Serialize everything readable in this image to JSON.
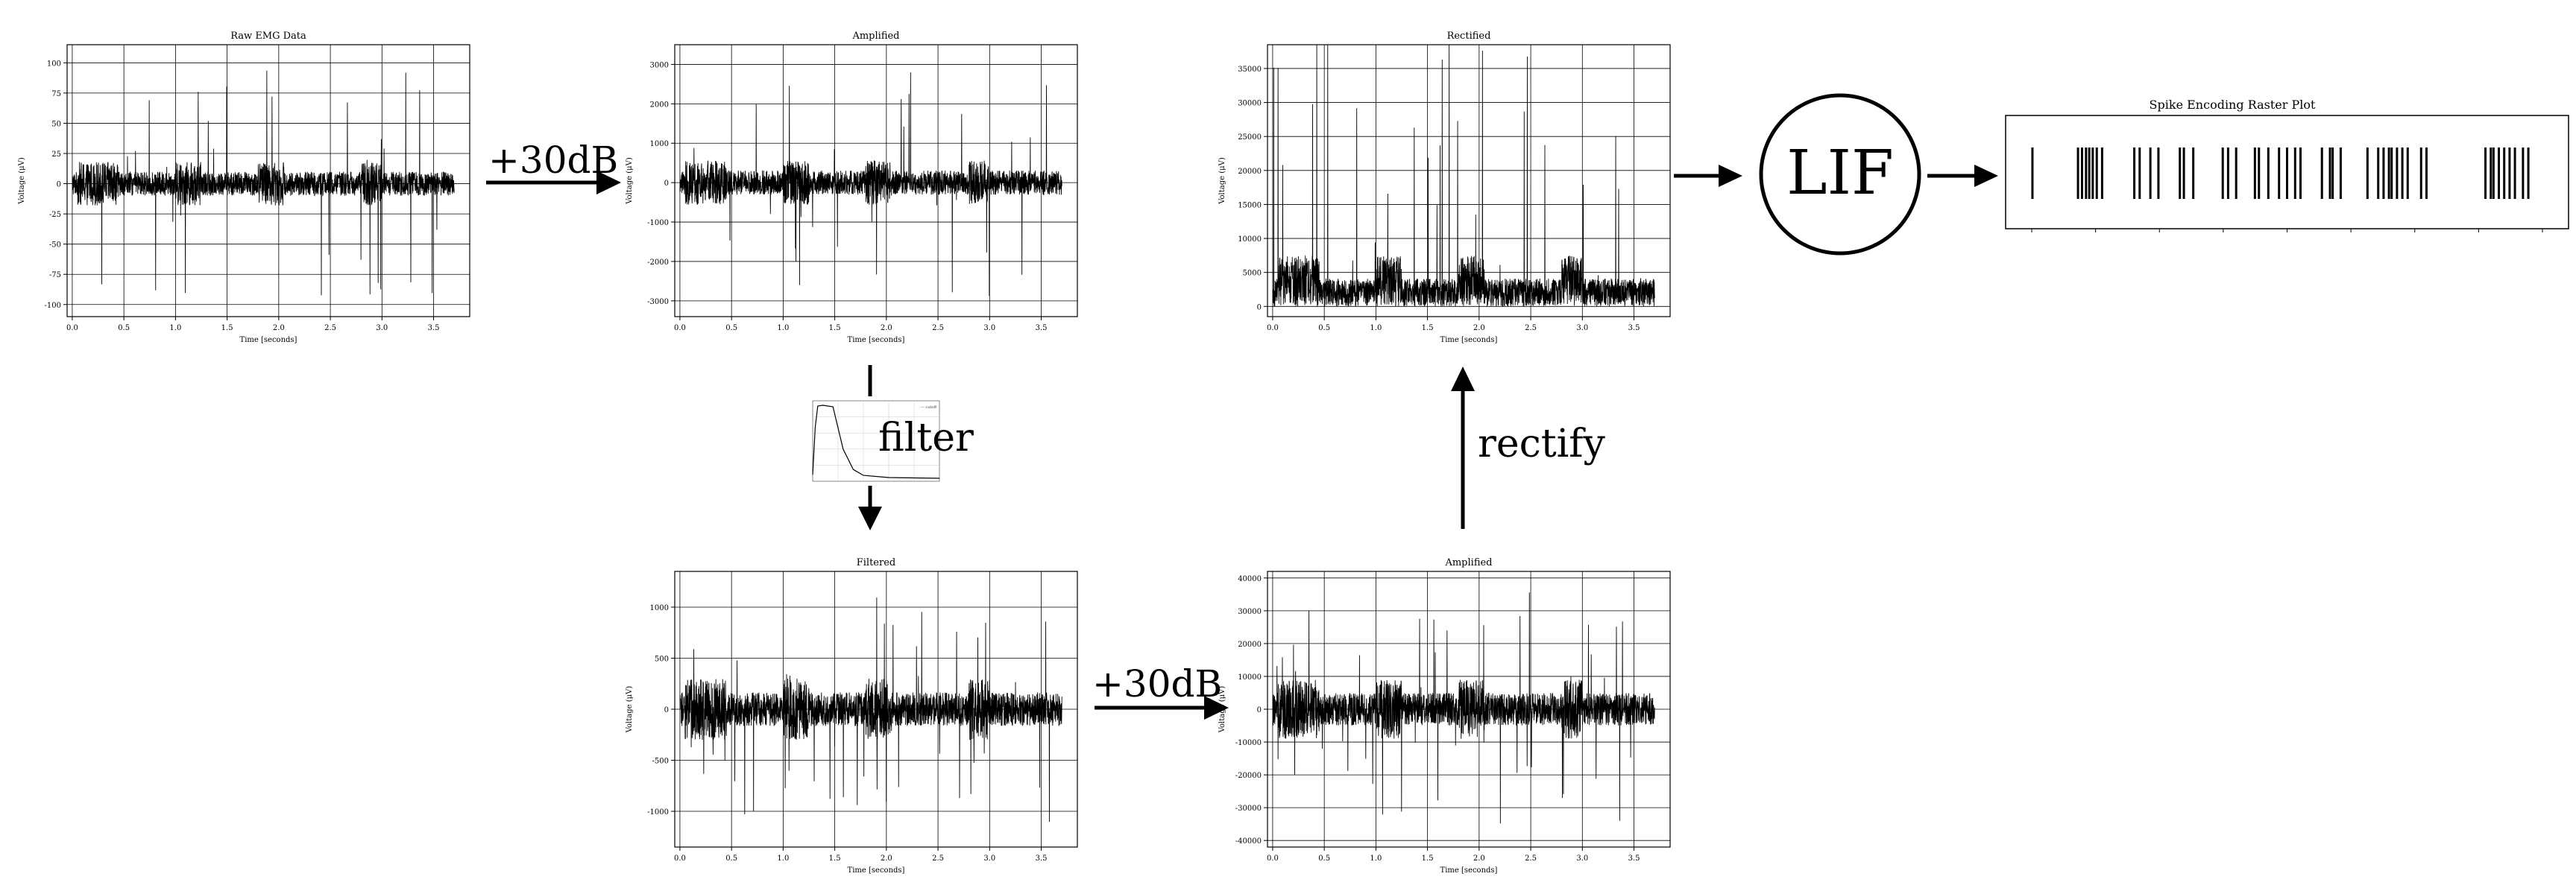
{
  "labels": {
    "gain1": "+30dB",
    "filter": "filter",
    "gain2": "+30dB",
    "rectify": "rectify",
    "lif": "LIF"
  },
  "x_ticks": [
    "0.0",
    "0.5",
    "1.0",
    "1.5",
    "2.0",
    "2.5",
    "3.0",
    "3.5"
  ],
  "charts": [
    {
      "id": "raw",
      "title": "Raw EMG Data",
      "xlabel": "Time [seconds]",
      "ylabel": "Voltage (μV)",
      "xlim": [
        -0.05,
        3.85
      ],
      "ylim": [
        -110,
        115
      ],
      "amp": 18,
      "spike": 95,
      "rectified": false,
      "yticks": [
        -100,
        -75,
        -50,
        -25,
        0,
        25,
        50,
        75,
        100
      ]
    },
    {
      "id": "amp1",
      "title": "Amplified",
      "xlabel": "Time [seconds]",
      "ylabel": "Voltage (μV)",
      "xlim": [
        -0.05,
        3.85
      ],
      "ylim": [
        -3400,
        3500
      ],
      "amp": 560,
      "spike": 3000,
      "rectified": false,
      "yticks": [
        -3000,
        -2000,
        -1000,
        0,
        1000,
        2000,
        3000
      ]
    },
    {
      "id": "rect",
      "title": "Rectified",
      "xlabel": "Time [seconds]",
      "ylabel": "Voltage (μV)",
      "xlim": [
        -0.05,
        3.85
      ],
      "ylim": [
        -1500,
        38500
      ],
      "amp": 6500,
      "spike": 36000,
      "rectified": true,
      "yticks": [
        0,
        5000,
        10000,
        15000,
        20000,
        25000,
        30000,
        35000
      ]
    },
    {
      "id": "filt",
      "title": "Filtered",
      "xlabel": "Time [seconds]",
      "ylabel": "Voltage (μV)",
      "xlim": [
        -0.05,
        3.85
      ],
      "ylim": [
        -1350,
        1350
      ],
      "amp": 300,
      "spike": 1150,
      "rectified": false,
      "yticks": [
        -1000,
        -500,
        0,
        500,
        1000
      ]
    },
    {
      "id": "amp2",
      "title": "Amplified",
      "xlabel": "Time [seconds]",
      "ylabel": "Voltage (μV)",
      "xlim": [
        -0.05,
        3.85
      ],
      "ylim": [
        -42000,
        42000
      ],
      "amp": 9000,
      "spike": 37000,
      "rectified": false,
      "yticks": [
        -40000,
        -30000,
        -20000,
        -10000,
        0,
        10000,
        20000,
        30000,
        40000
      ]
    }
  ],
  "raster": {
    "title": "Spike Encoding Raster Plot",
    "spike_times": [
      0.05,
      0.22,
      0.235,
      0.25,
      0.262,
      0.275,
      0.29,
      0.31,
      0.43,
      0.45,
      0.49,
      0.52,
      0.6,
      0.615,
      0.65,
      0.76,
      0.78,
      0.81,
      0.88,
      0.895,
      0.93,
      0.97,
      1.0,
      1.03,
      1.05,
      1.13,
      1.16,
      1.17,
      1.2,
      1.3,
      1.34,
      1.36,
      1.38,
      1.39,
      1.41,
      1.43,
      1.45,
      1.5,
      1.52,
      1.74,
      1.76,
      1.77,
      1.79,
      1.81,
      1.83,
      1.85,
      1.88,
      1.9
    ]
  },
  "filter_inset": {
    "legend": "— cutoff",
    "curve": [
      [
        0,
        0.05
      ],
      [
        5,
        0.7
      ],
      [
        10,
        0.99
      ],
      [
        20,
        1.0
      ],
      [
        40,
        0.98
      ],
      [
        60,
        0.4
      ],
      [
        80,
        0.12
      ],
      [
        100,
        0.04
      ],
      [
        150,
        0.01
      ],
      [
        250,
        0.0
      ]
    ]
  }
}
